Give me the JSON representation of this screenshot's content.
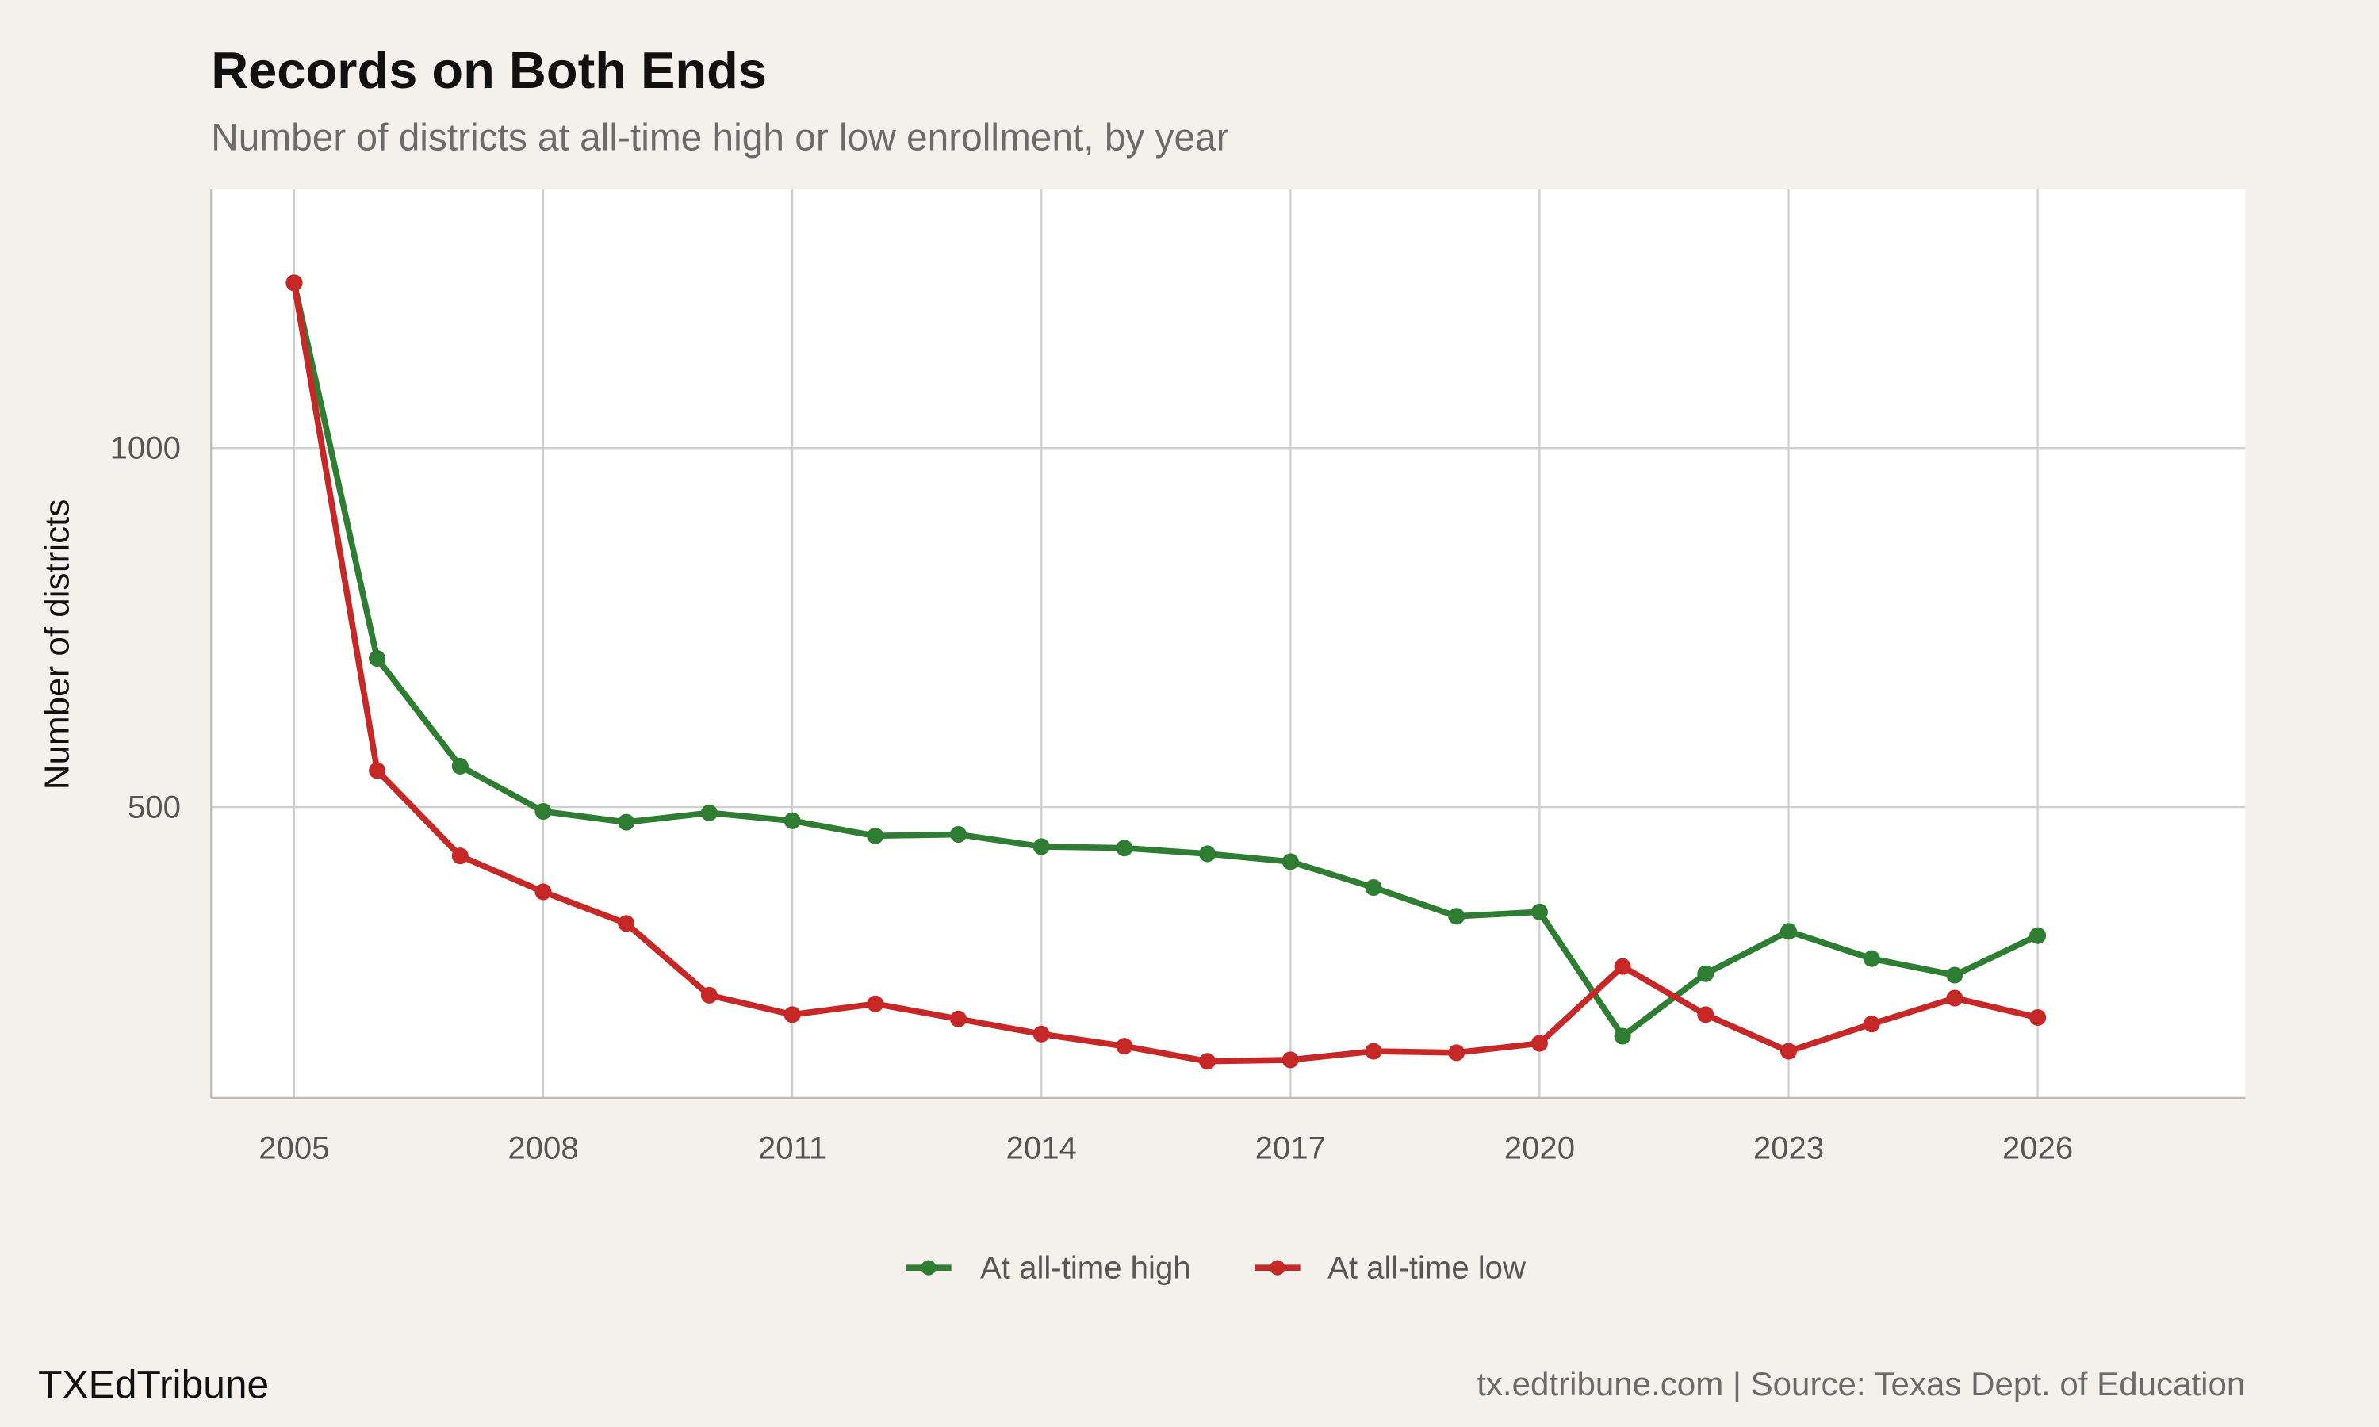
{
  "chart_data": {
    "type": "line",
    "title": "Records on Both Ends",
    "subtitle": "Number of districts at all-time high or low enrollment, by year",
    "xlabel": "",
    "ylabel": "Number of districts",
    "xlim": [
      2004,
      2028.5
    ],
    "ylim": [
      95,
      1360
    ],
    "x_ticks": [
      2005,
      2008,
      2011,
      2014,
      2017,
      2020,
      2023,
      2026
    ],
    "y_ticks": [
      500,
      1000
    ],
    "grid": true,
    "legend_position": "bottom",
    "x": [
      2005,
      2006,
      2007,
      2008,
      2009,
      2010,
      2011,
      2012,
      2013,
      2014,
      2015,
      2016,
      2017,
      2018,
      2019,
      2020,
      2021,
      2022,
      2023,
      2024,
      2025,
      2026
    ],
    "series": [
      {
        "name": "At all-time high",
        "color": "#2e7d32",
        "values": [
          1230,
          707,
          557,
          494,
          479,
          492,
          481,
          460,
          462,
          445,
          443,
          435,
          424,
          388,
          348,
          354,
          181,
          268,
          327,
          289,
          266,
          321
        ]
      },
      {
        "name": "At all-time low",
        "color": "#c62828",
        "values": [
          1230,
          551,
          432,
          382,
          338,
          238,
          211,
          226,
          205,
          184,
          167,
          146,
          148,
          160,
          158,
          171,
          278,
          211,
          160,
          198,
          234,
          207
        ]
      }
    ]
  },
  "footer": {
    "brand": "TXEdTribune",
    "caption": "tx.edtribune.com | Source: Texas Dept. of Education"
  }
}
